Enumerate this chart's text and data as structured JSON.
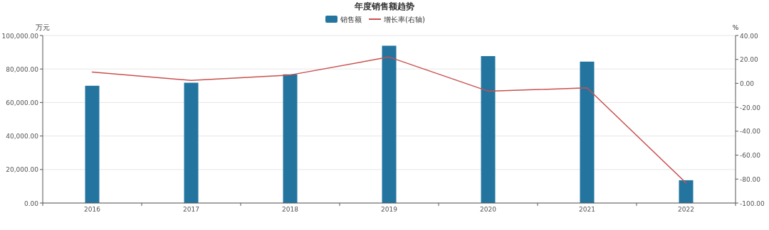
{
  "chart_data": {
    "type": "bar",
    "title": "年度销售额趋势",
    "ylabel": "万元",
    "y2label": "%",
    "categories": [
      "2016",
      "2017",
      "2018",
      "2019",
      "2020",
      "2021",
      "2022"
    ],
    "series": [
      {
        "name": "销售额",
        "color": "#23759f",
        "values": [
          70000,
          71800,
          76800,
          93900,
          87700,
          84400,
          13600
        ]
      },
      {
        "name": "增长率(右轴)",
        "type": "line",
        "axis": "y2",
        "color": "#c9504f",
        "values": [
          9.5,
          2.5,
          7.0,
          22.0,
          -6.5,
          -3.8,
          -83.2
        ]
      }
    ],
    "ylim": [
      0,
      100000
    ],
    "yticks": [
      {
        "value": 0,
        "label": "0.00"
      },
      {
        "value": 20000,
        "label": "20,000.00"
      },
      {
        "value": 40000,
        "label": "40,000.00"
      },
      {
        "value": 60000,
        "label": "60,000.00"
      },
      {
        "value": 80000,
        "label": "80,000.00"
      },
      {
        "value": 100000,
        "label": "100,000.00"
      }
    ],
    "y2lim": [
      -100,
      40
    ],
    "y2ticks": [
      {
        "value": -100,
        "label": "-100.00"
      },
      {
        "value": -80,
        "label": "-80.00"
      },
      {
        "value": -60,
        "label": "-60.00"
      },
      {
        "value": -40,
        "label": "-40.00"
      },
      {
        "value": -20,
        "label": "-20.00"
      },
      {
        "value": 0,
        "label": "0.00"
      },
      {
        "value": 20,
        "label": "20.00"
      },
      {
        "value": 40,
        "label": "40.00"
      }
    ],
    "grid": "y",
    "legend": "top",
    "marker": "none",
    "line_style": "solid"
  }
}
